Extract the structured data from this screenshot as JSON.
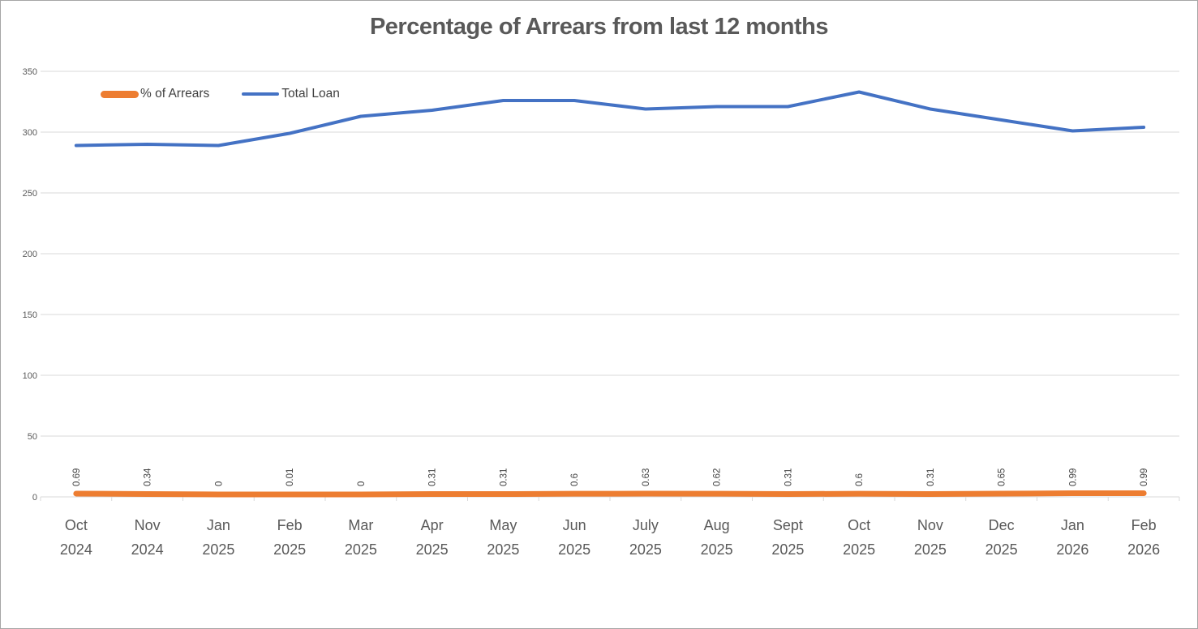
{
  "chart_data": {
    "type": "line",
    "title": "Percentage of Arrears from last 12 months",
    "categories": [
      "Oct 2024",
      "Nov 2024",
      "Jan 2025",
      "Feb 2025",
      "Mar 2025",
      "Apr 2025",
      "May 2025",
      "Jun 2025",
      "July 2025",
      "Aug 2025",
      "Sept 2025",
      "Oct 2025",
      "Nov 2025",
      "Dec 2025",
      "Jan 2026",
      "Feb 2026"
    ],
    "series": [
      {
        "name": "% of Arrears",
        "color": "#ED7D31",
        "line_width": 7,
        "values": [
          0.69,
          0.34,
          0,
          0.01,
          0,
          0.31,
          0.31,
          0.6,
          0.63,
          0.62,
          0.31,
          0.6,
          0.31,
          0.65,
          0.99,
          0.99
        ],
        "data_labels": [
          "0.69",
          "0.34",
          "0",
          "0.01",
          "0",
          "0.31",
          "0.31",
          "0.6",
          "0.63",
          "0.62",
          "0.31",
          "0.6",
          "0.31",
          "0.65",
          "0.99",
          "0.99"
        ]
      },
      {
        "name": "Total Loan",
        "color": "#4472C4",
        "line_width": 4,
        "values": [
          289,
          290,
          289,
          299,
          313,
          318,
          326,
          326,
          319,
          321,
          321,
          333,
          319,
          310,
          301,
          304
        ],
        "data_labels": []
      }
    ],
    "ylim": [
      0,
      350
    ],
    "yticks": [
      0,
      50,
      100,
      150,
      200,
      250,
      300,
      350
    ],
    "grid": true,
    "legend_position": "top-left-inside",
    "x_labels_two_lines": true
  },
  "colors": {
    "background": "#FFFFFF",
    "border": "#A6A6A6",
    "grid": "#D9D9D9",
    "axis": "#D9D9D9",
    "y_tick_label": "#595959",
    "x_tick_label": "#595959",
    "data_label": "#404040",
    "title": "#595959",
    "legend_text": "#404040"
  }
}
